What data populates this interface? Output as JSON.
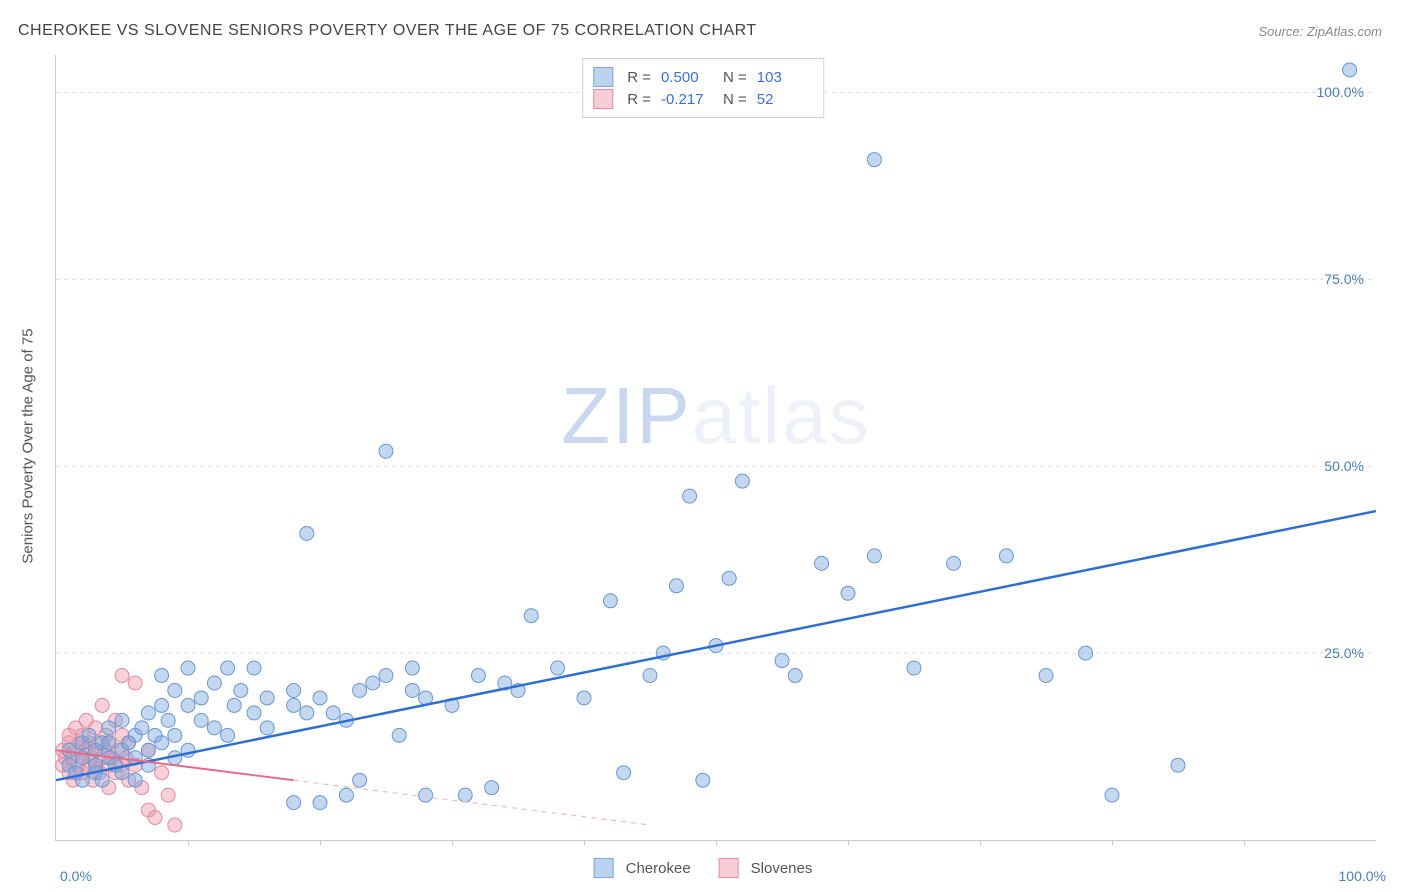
{
  "title": "CHEROKEE VS SLOVENE SENIORS POVERTY OVER THE AGE OF 75 CORRELATION CHART",
  "source": "Source: ZipAtlas.com",
  "ylabel": "Seniors Poverty Over the Age of 75",
  "watermark_zip": "ZIP",
  "watermark_atlas": "atlas",
  "chart": {
    "type": "scatter",
    "xlim": [
      0,
      100
    ],
    "ylim": [
      0,
      105
    ],
    "y_ticks": [
      25,
      50,
      75,
      100
    ],
    "y_tick_labels": [
      "25.0%",
      "50.0%",
      "75.0%",
      "100.0%"
    ],
    "x_tick_labels": {
      "min": "0.0%",
      "max": "100.0%"
    },
    "x_minor_ticks": [
      10,
      20,
      30,
      40,
      50,
      60,
      70,
      80,
      90
    ],
    "background_color": "#ffffff",
    "grid_color": "#dddddd",
    "axis_color": "#cccccc",
    "tick_label_color": "#4a7ebb"
  },
  "stats_legend": {
    "rows": [
      {
        "swatch_fill": "#bcd3ef",
        "swatch_border": "#7ba7dd",
        "r_label": "R =",
        "r_value": "0.500",
        "n_label": "N =",
        "n_value": "103"
      },
      {
        "swatch_fill": "#f7cdd7",
        "swatch_border": "#e88ba2",
        "r_label": "R =",
        "r_value": "-0.217",
        "n_label": "N =",
        "n_value": "52"
      }
    ]
  },
  "bottom_legend": {
    "items": [
      {
        "swatch_fill": "#bcd3ef",
        "swatch_border": "#7ba7dd",
        "label": "Cherokee"
      },
      {
        "swatch_fill": "#f7cdd7",
        "swatch_border": "#e88ba2",
        "label": "Slovenes"
      }
    ]
  },
  "series": {
    "cherokee": {
      "color_fill": "rgba(123,167,221,0.45)",
      "color_stroke": "#6a97cf",
      "marker_radius": 7,
      "trend_color": "#2f6fd0",
      "trend_width": 2.5,
      "trend_style": "solid",
      "trend": {
        "x1": 0,
        "y1": 8,
        "x2": 100,
        "y2": 44
      },
      "points": [
        [
          1,
          10
        ],
        [
          1,
          12
        ],
        [
          1.5,
          9
        ],
        [
          2,
          11
        ],
        [
          2,
          13
        ],
        [
          2,
          8
        ],
        [
          2.5,
          14
        ],
        [
          3,
          10
        ],
        [
          3,
          9
        ],
        [
          3,
          12
        ],
        [
          3.5,
          13
        ],
        [
          3.5,
          8
        ],
        [
          4,
          11
        ],
        [
          4,
          13
        ],
        [
          4,
          15
        ],
        [
          4.5,
          10
        ],
        [
          5,
          12
        ],
        [
          5,
          9
        ],
        [
          5,
          16
        ],
        [
          5.5,
          13
        ],
        [
          6,
          11
        ],
        [
          6,
          14
        ],
        [
          6,
          8
        ],
        [
          6.5,
          15
        ],
        [
          7,
          12
        ],
        [
          7,
          17
        ],
        [
          7,
          10
        ],
        [
          7.5,
          14
        ],
        [
          8,
          13
        ],
        [
          8,
          18
        ],
        [
          8,
          22
        ],
        [
          8.5,
          16
        ],
        [
          9,
          20
        ],
        [
          9,
          14
        ],
        [
          9,
          11
        ],
        [
          10,
          18
        ],
        [
          10,
          12
        ],
        [
          10,
          23
        ],
        [
          11,
          16
        ],
        [
          11,
          19
        ],
        [
          12,
          21
        ],
        [
          12,
          15
        ],
        [
          13,
          14
        ],
        [
          13,
          23
        ],
        [
          13.5,
          18
        ],
        [
          14,
          20
        ],
        [
          15,
          17
        ],
        [
          15,
          23
        ],
        [
          16,
          15
        ],
        [
          16,
          19
        ],
        [
          18,
          18
        ],
        [
          18,
          20
        ],
        [
          18,
          5
        ],
        [
          19,
          17
        ],
        [
          19,
          41
        ],
        [
          20,
          19
        ],
        [
          20,
          5
        ],
        [
          21,
          17
        ],
        [
          22,
          16
        ],
        [
          22,
          6
        ],
        [
          23,
          20
        ],
        [
          23,
          8
        ],
        [
          24,
          21
        ],
        [
          25,
          22
        ],
        [
          25,
          52
        ],
        [
          26,
          14
        ],
        [
          27,
          20
        ],
        [
          27,
          23
        ],
        [
          28,
          6
        ],
        [
          28,
          19
        ],
        [
          30,
          18
        ],
        [
          31,
          6
        ],
        [
          32,
          22
        ],
        [
          33,
          7
        ],
        [
          34,
          21
        ],
        [
          35,
          20
        ],
        [
          36,
          30
        ],
        [
          38,
          23
        ],
        [
          40,
          19
        ],
        [
          42,
          32
        ],
        [
          43,
          9
        ],
        [
          45,
          22
        ],
        [
          46,
          25
        ],
        [
          47,
          34
        ],
        [
          48,
          46
        ],
        [
          49,
          8
        ],
        [
          50,
          26
        ],
        [
          51,
          35
        ],
        [
          52,
          48
        ],
        [
          55,
          24
        ],
        [
          56,
          22
        ],
        [
          58,
          37
        ],
        [
          60,
          33
        ],
        [
          62,
          38
        ],
        [
          62,
          91
        ],
        [
          65,
          23
        ],
        [
          68,
          37
        ],
        [
          72,
          38
        ],
        [
          75,
          22
        ],
        [
          78,
          25
        ],
        [
          80,
          6
        ],
        [
          85,
          10
        ],
        [
          98,
          103
        ]
      ]
    },
    "slovenes": {
      "color_fill": "rgba(240,150,170,0.45)",
      "color_stroke": "#e28aa0",
      "marker_radius": 7,
      "trend_solid_color": "#e76a8a",
      "trend_solid_width": 2,
      "trend_solid": {
        "x1": 0,
        "y1": 12,
        "x2": 18,
        "y2": 8
      },
      "trend_dash_color": "#f0b8c4",
      "trend_dash_width": 1.2,
      "trend_dash": {
        "x1": 18,
        "y1": 8,
        "x2": 45,
        "y2": 2
      },
      "points": [
        [
          0.5,
          12
        ],
        [
          0.5,
          10
        ],
        [
          0.7,
          11
        ],
        [
          1,
          13
        ],
        [
          1,
          9
        ],
        [
          1,
          14
        ],
        [
          1.2,
          11
        ],
        [
          1.3,
          8
        ],
        [
          1.5,
          12
        ],
        [
          1.5,
          15
        ],
        [
          1.7,
          10
        ],
        [
          1.8,
          13
        ],
        [
          2,
          11
        ],
        [
          2,
          14
        ],
        [
          2,
          9
        ],
        [
          2.2,
          12
        ],
        [
          2.3,
          16
        ],
        [
          2.5,
          10
        ],
        [
          2.5,
          13
        ],
        [
          2.7,
          11
        ],
        [
          2.8,
          8
        ],
        [
          3,
          12
        ],
        [
          3,
          15
        ],
        [
          3,
          10
        ],
        [
          3.2,
          13
        ],
        [
          3.3,
          9
        ],
        [
          3.5,
          11
        ],
        [
          3.5,
          18
        ],
        [
          3.7,
          12
        ],
        [
          3.8,
          14
        ],
        [
          4,
          10
        ],
        [
          4,
          13
        ],
        [
          4,
          7
        ],
        [
          4.2,
          11
        ],
        [
          4.5,
          16
        ],
        [
          4.5,
          9
        ],
        [
          4.7,
          12
        ],
        [
          5,
          14
        ],
        [
          5,
          10
        ],
        [
          5,
          22
        ],
        [
          5.3,
          11
        ],
        [
          5.5,
          8
        ],
        [
          5.5,
          13
        ],
        [
          6,
          10
        ],
        [
          6,
          21
        ],
        [
          6.5,
          7
        ],
        [
          7,
          12
        ],
        [
          7,
          4
        ],
        [
          7.5,
          3
        ],
        [
          8,
          9
        ],
        [
          8.5,
          6
        ],
        [
          9,
          2
        ]
      ]
    }
  }
}
